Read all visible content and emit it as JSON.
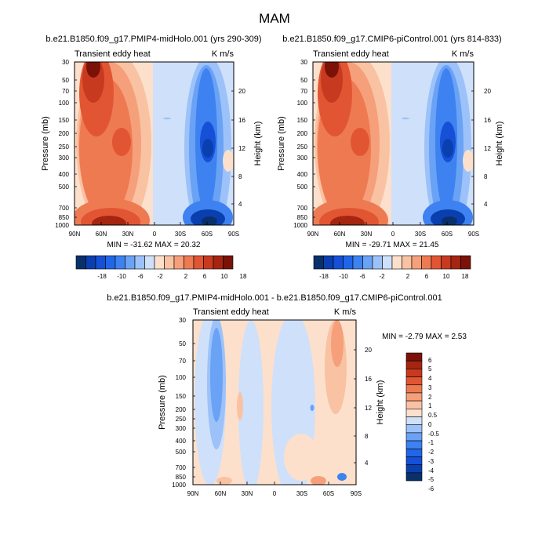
{
  "figure_title": "MAM",
  "chart_data": [
    {
      "type": "heatmap",
      "title": "b.e21.B1850.f09_g17.PMIP4-midHolo.001 (yrs 290-309)",
      "left_subtitle": "Transient eddy heat",
      "right_subtitle": "K m/s",
      "xlabel": "",
      "ylabel": "Pressure (mb)",
      "ylabel_right": "Height (km)",
      "x_ticks": [
        "90N",
        "60N",
        "30N",
        "0",
        "30S",
        "60S",
        "90S"
      ],
      "y_ticks": [
        "30",
        "50",
        "70",
        "100",
        "150",
        "200",
        "250",
        "300",
        "400",
        "500",
        "700",
        "850",
        "1000"
      ],
      "y_ticks_right": [
        "20",
        "16",
        "12",
        "8",
        "4"
      ],
      "stats": "MIN = -31.62  MAX = 20.32",
      "colorbar_levels": [
        "-18",
        "-10",
        "-6",
        "-2",
        "2",
        "6",
        "10",
        "18"
      ]
    },
    {
      "type": "heatmap",
      "title": "b.e21.B1850.f09_g17.CMIP6-piControl.001 (yrs 814-833)",
      "left_subtitle": "Transient eddy heat",
      "right_subtitle": "K m/s",
      "xlabel": "",
      "ylabel": "Pressure (mb)",
      "ylabel_right": "Height (km)",
      "x_ticks": [
        "90N",
        "60N",
        "30N",
        "0",
        "30S",
        "60S",
        "90S"
      ],
      "y_ticks": [
        "30",
        "50",
        "70",
        "100",
        "150",
        "200",
        "250",
        "300",
        "400",
        "500",
        "700",
        "850",
        "1000"
      ],
      "y_ticks_right": [
        "20",
        "16",
        "12",
        "8",
        "4"
      ],
      "stats": "MIN = -29.71  MAX = 21.45",
      "colorbar_levels": [
        "-18",
        "-10",
        "-6",
        "-2",
        "2",
        "6",
        "10",
        "18"
      ]
    },
    {
      "type": "heatmap",
      "title": "b.e21.B1850.f09_g17.PMIP4-midHolo.001 - b.e21.B1850.f09_g17.CMIP6-piControl.001",
      "left_subtitle": "Transient eddy heat",
      "right_subtitle": "K m/s",
      "xlabel": "",
      "ylabel": "Pressure (mb)",
      "ylabel_right": "Height (km)",
      "x_ticks": [
        "90N",
        "60N",
        "30N",
        "0",
        "30S",
        "60S",
        "90S"
      ],
      "y_ticks": [
        "30",
        "50",
        "70",
        "100",
        "150",
        "200",
        "250",
        "300",
        "400",
        "500",
        "700",
        "850",
        "1000"
      ],
      "y_ticks_right": [
        "20",
        "16",
        "12",
        "8",
        "4"
      ],
      "stats": "MIN =  -2.79  MAX =   2.53",
      "colorbar_levels": [
        "6",
        "5",
        "4",
        "3",
        "2",
        "1",
        "0.5",
        "0",
        "-0.5",
        "-1",
        "-2",
        "-3",
        "-4",
        "-5",
        "-6"
      ]
    }
  ],
  "colors": {
    "diverging_16": [
      "#08306b",
      "#0a3fb0",
      "#1550d6",
      "#2166e8",
      "#3d82f0",
      "#6aa2f5",
      "#9cc2f9",
      "#cfe0fb",
      "#fce0cc",
      "#f9c2a3",
      "#f5a07a",
      "#ee7a52",
      "#e25533",
      "#c83a1f",
      "#a52510",
      "#7a1208"
    ],
    "axis": "#000000",
    "background": "#ffffff"
  }
}
